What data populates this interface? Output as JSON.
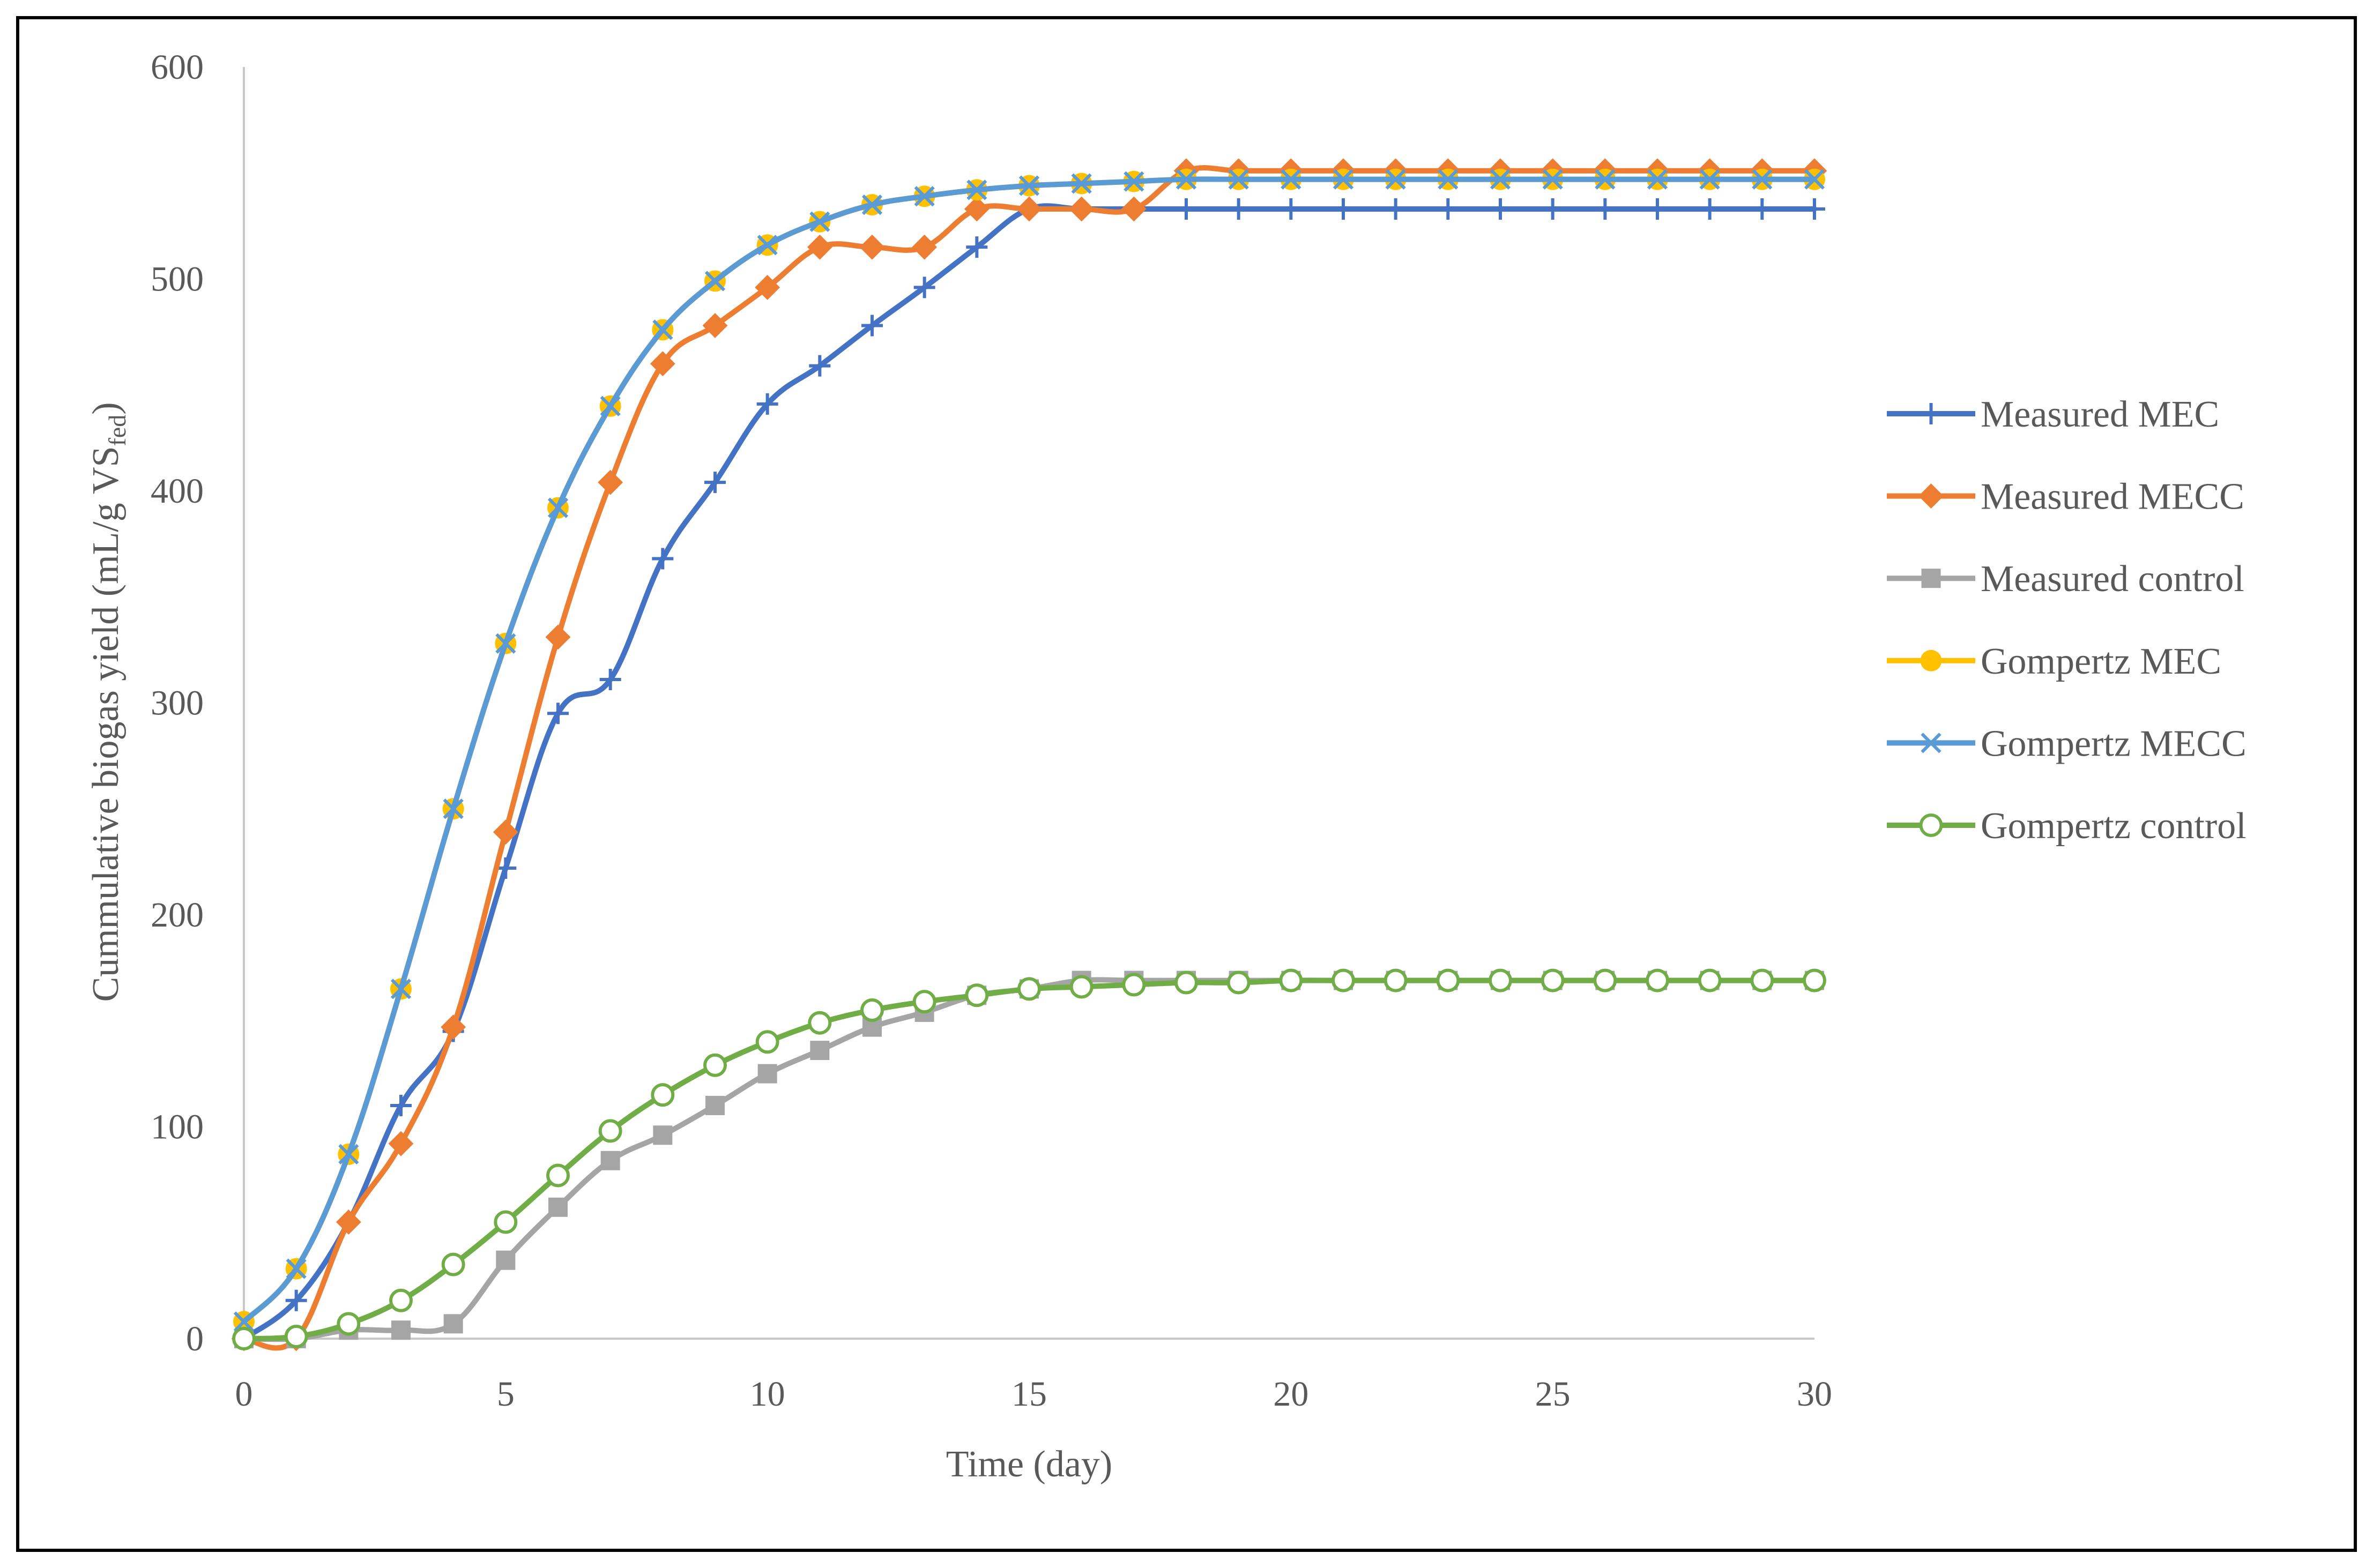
{
  "chart_data": {
    "type": "line",
    "title": "",
    "xlabel": "Time (day)",
    "ylabel": {
      "main": "Cummulative biogas yield (mL/g VS",
      "subscript": "fed",
      "close": ")"
    },
    "xlim": [
      0,
      30
    ],
    "ylim": [
      0,
      600
    ],
    "x_ticks": [
      "0",
      "5",
      "10",
      "15",
      "20",
      "25",
      "30"
    ],
    "y_ticks": [
      "0",
      "100",
      "200",
      "300",
      "400",
      "500",
      "600"
    ],
    "grid": false,
    "legend_position": "right",
    "x": [
      0,
      1,
      2,
      3,
      4,
      5,
      6,
      7,
      8,
      9,
      10,
      11,
      12,
      13,
      14,
      15,
      16,
      17,
      18,
      19,
      20,
      21,
      22,
      23,
      24,
      25,
      26,
      27,
      28,
      29,
      30
    ],
    "series": [
      {
        "name": "Measured MEC",
        "color": "#4472c4",
        "marker": "plus",
        "values": [
          0,
          18,
          55,
          110,
          145,
          222,
          295,
          311,
          368,
          404,
          441,
          459,
          478,
          496,
          515,
          533,
          533,
          533,
          533,
          533,
          533,
          533,
          533,
          533,
          533,
          533,
          533,
          533,
          533,
          533,
          533
        ]
      },
      {
        "name": "Measured MECC",
        "color": "#ed7d31",
        "marker": "diamond",
        "values": [
          0,
          0,
          55,
          92,
          147,
          239,
          331,
          404,
          460,
          478,
          496,
          515,
          515,
          515,
          533,
          533,
          533,
          533,
          551,
          551,
          551,
          551,
          551,
          551,
          551,
          551,
          551,
          551,
          551,
          551,
          551
        ]
      },
      {
        "name": "Measured control",
        "color": "#a5a5a5",
        "marker": "square",
        "values": [
          0,
          0,
          4,
          4,
          7,
          37,
          62,
          84,
          96,
          110,
          125,
          136,
          147,
          154,
          162,
          165,
          169,
          169,
          169,
          169,
          169,
          169,
          169,
          169,
          169,
          169,
          169,
          169,
          169,
          169,
          169
        ]
      },
      {
        "name": "Gompertz MEC",
        "color": "#ffc000",
        "marker": "circle",
        "values": [
          8,
          33,
          87,
          165,
          250,
          328,
          392,
          440,
          476,
          499,
          516,
          527,
          535,
          539,
          542,
          544,
          545,
          546,
          547,
          547,
          547,
          547,
          547,
          547,
          547,
          547,
          547,
          547,
          547,
          547,
          547
        ]
      },
      {
        "name": "Gompertz MECC",
        "color": "#5b9bd5",
        "marker": "x",
        "values": [
          8,
          33,
          87,
          165,
          250,
          328,
          392,
          440,
          476,
          499,
          516,
          527,
          535,
          539,
          542,
          544,
          545,
          546,
          547,
          547,
          547,
          547,
          547,
          547,
          547,
          547,
          547,
          547,
          547,
          547,
          547
        ]
      },
      {
        "name": "Gompertz control",
        "color": "#70ad47",
        "marker": "hollow-circle",
        "values": [
          0,
          1,
          7,
          18,
          35,
          55,
          77,
          98,
          115,
          129,
          140,
          149,
          155,
          159,
          162,
          165,
          166,
          167,
          168,
          168,
          169,
          169,
          169,
          169,
          169,
          169,
          169,
          169,
          169,
          169,
          169
        ]
      }
    ]
  }
}
